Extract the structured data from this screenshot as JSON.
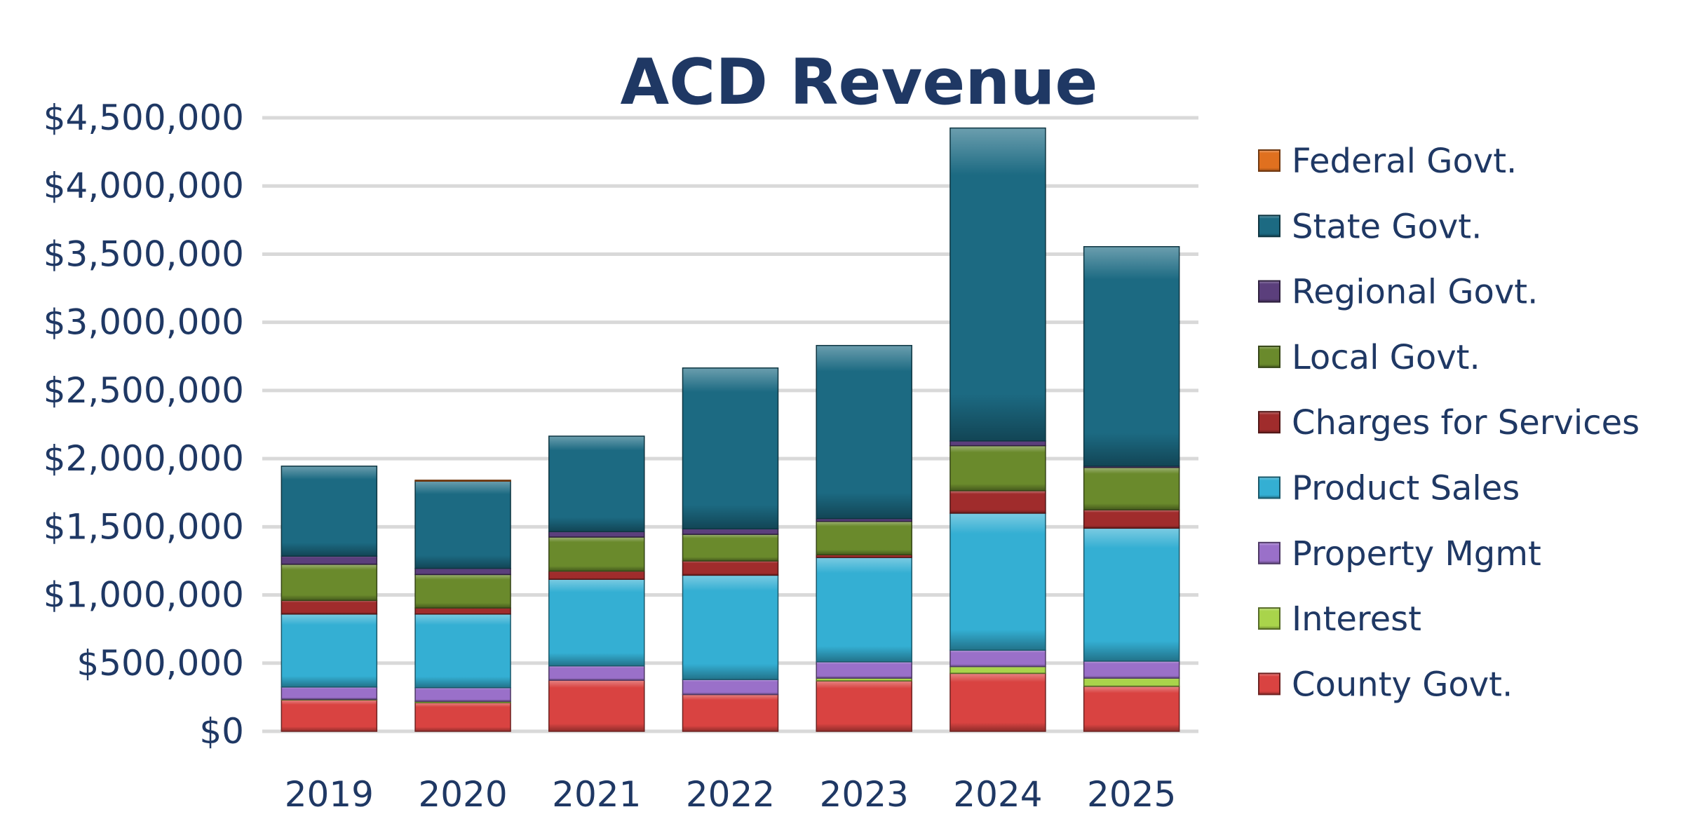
{
  "chart_data": {
    "type": "bar",
    "stacked": true,
    "title": "ACD Revenue",
    "xlabel": "",
    "ylabel": "",
    "categories": [
      "2019",
      "2020",
      "2021",
      "2022",
      "2023",
      "2024",
      "2025"
    ],
    "ylim": [
      0,
      4500000
    ],
    "yticks": [
      0,
      500000,
      1000000,
      1500000,
      2000000,
      2500000,
      3000000,
      3500000,
      4000000,
      4500000
    ],
    "ytick_labels": [
      "$0",
      "$500,000",
      "$1,000,000",
      "$1,500,000",
      "$2,000,000",
      "$2,500,000",
      "$3,000,000",
      "$3,500,000",
      "$4,000,000",
      "$4,500,000"
    ],
    "grid": true,
    "legend_position": "right",
    "series": [
      {
        "name": "County Govt.",
        "color": "#d94341",
        "values": [
          230000,
          210000,
          375000,
          270000,
          370000,
          425000,
          330000
        ]
      },
      {
        "name": "Interest",
        "color": "#a9d44b",
        "values": [
          5000,
          10000,
          0,
          0,
          20000,
          50000,
          60000
        ]
      },
      {
        "name": "Property Mgmt",
        "color": "#9a70c9",
        "values": [
          90000,
          100000,
          105000,
          110000,
          120000,
          120000,
          125000
        ]
      },
      {
        "name": "Product Sales",
        "color": "#34afd3",
        "values": [
          535000,
          540000,
          635000,
          765000,
          765000,
          1005000,
          975000
        ]
      },
      {
        "name": "Charges for Services",
        "color": "#a02c2c",
        "values": [
          100000,
          45000,
          60000,
          105000,
          20000,
          165000,
          135000
        ]
      },
      {
        "name": "Local Govt.",
        "color": "#6a8a2c",
        "values": [
          265000,
          245000,
          250000,
          195000,
          245000,
          330000,
          310000
        ]
      },
      {
        "name": "Regional Govt.",
        "color": "#5b3f7c",
        "values": [
          60000,
          45000,
          40000,
          40000,
          20000,
          35000,
          10000
        ]
      },
      {
        "name": "State Govt.",
        "color": "#1c6a82",
        "values": [
          660000,
          640000,
          700000,
          1180000,
          1270000,
          2295000,
          1610000
        ]
      },
      {
        "name": "Federal Govt.",
        "color": "#e0701f",
        "values": [
          0,
          7000,
          0,
          0,
          0,
          0,
          0
        ]
      }
    ]
  }
}
